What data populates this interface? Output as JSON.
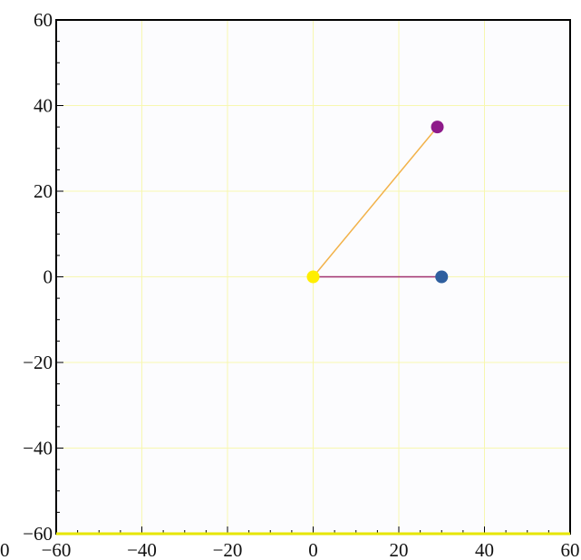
{
  "chart_data": {
    "type": "scatter",
    "title": "",
    "xlabel": "",
    "ylabel": "",
    "xlim": [
      -60,
      60
    ],
    "ylim": [
      -60,
      60
    ],
    "grid": true,
    "xticks": [
      -60,
      -40,
      -20,
      0,
      20,
      40,
      60
    ],
    "yticks": [
      -60,
      -40,
      -20,
      0,
      20,
      40,
      60
    ],
    "x_tick_labels": [
      "−60",
      "−40",
      "−20",
      "0",
      "20",
      "40",
      "60"
    ],
    "y_tick_labels": [
      "−60",
      "−40",
      "−20",
      "0",
      "20",
      "40",
      "60"
    ],
    "clipped_left_label": "0",
    "points": [
      {
        "x": 0,
        "y": 0,
        "color": "#ffee00"
      },
      {
        "x": 29,
        "y": 35,
        "color": "#8e1a8a"
      },
      {
        "x": 30,
        "y": 0,
        "color": "#2f5f9f"
      }
    ],
    "segments": [
      {
        "from": [
          0,
          0
        ],
        "to": [
          29,
          35
        ],
        "color": "#f2b24a"
      },
      {
        "from": [
          0,
          0
        ],
        "to": [
          30,
          0
        ],
        "color": "#a0306e"
      }
    ],
    "colors": {
      "background": "#fcfcfe",
      "axis_bottom": "#e6e600",
      "frame": "#000000",
      "grid": "#f7f7b0"
    }
  }
}
